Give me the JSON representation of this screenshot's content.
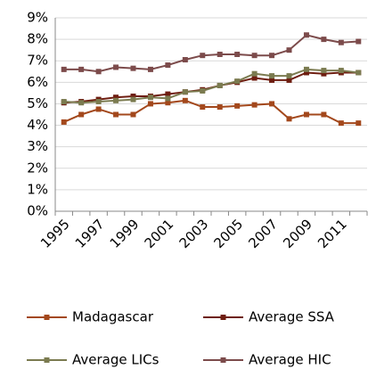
{
  "chart_data": {
    "type": "line",
    "categories": [
      "1995",
      null,
      "1997",
      null,
      "1999",
      null,
      "2001",
      null,
      "2003",
      null,
      "2005",
      null,
      "2007",
      null,
      "2009",
      null,
      "2011",
      null
    ],
    "series": [
      {
        "name": "Madagascar",
        "color": "#a3481c",
        "values": [
          4.15,
          4.5,
          4.75,
          4.5,
          4.5,
          5.0,
          5.05,
          5.15,
          4.85,
          4.85,
          4.9,
          4.95,
          5.0,
          4.3,
          4.5,
          4.5,
          4.1,
          4.1
        ]
      },
      {
        "name": "Average SSA",
        "color": "#6e1d10",
        "values": [
          5.05,
          5.1,
          5.2,
          5.3,
          5.35,
          5.35,
          5.45,
          5.55,
          5.65,
          5.85,
          6.0,
          6.2,
          6.1,
          6.1,
          6.45,
          6.4,
          6.45,
          6.45
        ]
      },
      {
        "name": "Average LICs",
        "color": "#7b7b50",
        "values": [
          5.1,
          5.05,
          5.1,
          5.15,
          5.2,
          5.3,
          5.25,
          5.55,
          5.6,
          5.85,
          6.05,
          6.4,
          6.3,
          6.3,
          6.6,
          6.55,
          6.55,
          6.45
        ]
      },
      {
        "name": "Average HIC",
        "color": "#7c4b4b",
        "values": [
          6.6,
          6.6,
          6.5,
          6.7,
          6.65,
          6.6,
          6.8,
          7.05,
          7.25,
          7.3,
          7.3,
          7.25,
          7.25,
          7.5,
          8.2,
          8.0,
          7.85,
          7.9
        ]
      }
    ],
    "ylim": [
      0,
      9
    ],
    "yticks": [
      {
        "value": 0,
        "label": "0%"
      },
      {
        "value": 1,
        "label": "1%"
      },
      {
        "value": 2,
        "label": "2%"
      },
      {
        "value": 3,
        "label": "3%"
      },
      {
        "value": 4,
        "label": "4%"
      },
      {
        "value": 5,
        "label": "5%"
      },
      {
        "value": 6,
        "label": "6%"
      },
      {
        "value": 7,
        "label": "7%"
      },
      {
        "value": 8,
        "label": "8%"
      },
      {
        "value": 9,
        "label": "9%"
      }
    ],
    "grid": true,
    "legend": "bottom"
  }
}
